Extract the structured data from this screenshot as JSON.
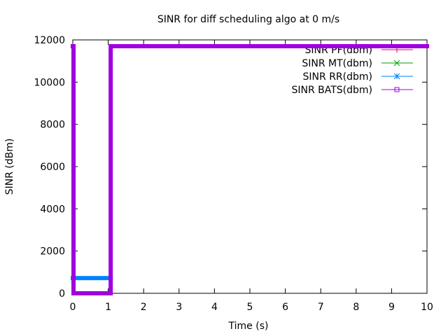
{
  "chart_data": {
    "type": "line",
    "title": "SINR for diff scheduling algo at 0 m/s",
    "xlabel": "Time (s)",
    "ylabel": "SINR (dBm)",
    "xlim": [
      0,
      10
    ],
    "ylim": [
      0,
      12000
    ],
    "xticks": [
      0,
      1,
      2,
      3,
      4,
      5,
      6,
      7,
      8,
      9,
      10
    ],
    "yticks": [
      0,
      2000,
      4000,
      6000,
      8000,
      10000,
      12000
    ],
    "grid": false,
    "legend_position": "top-right",
    "series": [
      {
        "name": "SINR PF(dbm)",
        "color": "#e0004a",
        "marker": "plus",
        "x": [
          0,
          0.02,
          0.02,
          1.07,
          1.07,
          10
        ],
        "y": [
          11700,
          11700,
          0,
          0,
          11700,
          11700
        ]
      },
      {
        "name": "SINR MT(dbm)",
        "color": "#00a000",
        "marker": "cross",
        "x": [
          0,
          0.02,
          0.02,
          1.07,
          1.07,
          10
        ],
        "y": [
          11700,
          11700,
          0,
          0,
          11700,
          11700
        ]
      },
      {
        "name": "SINR RR(dbm)",
        "color": "#0080ff",
        "marker": "star",
        "x": [
          0,
          1.07
        ],
        "y": [
          720,
          720
        ]
      },
      {
        "name": "SINR BATS(dbm)",
        "color": "#a000e0",
        "marker": "square",
        "x": [
          0,
          0.02,
          0.02,
          1.07,
          1.07,
          10
        ],
        "y": [
          11700,
          11700,
          0,
          0,
          11700,
          11700
        ]
      }
    ]
  }
}
